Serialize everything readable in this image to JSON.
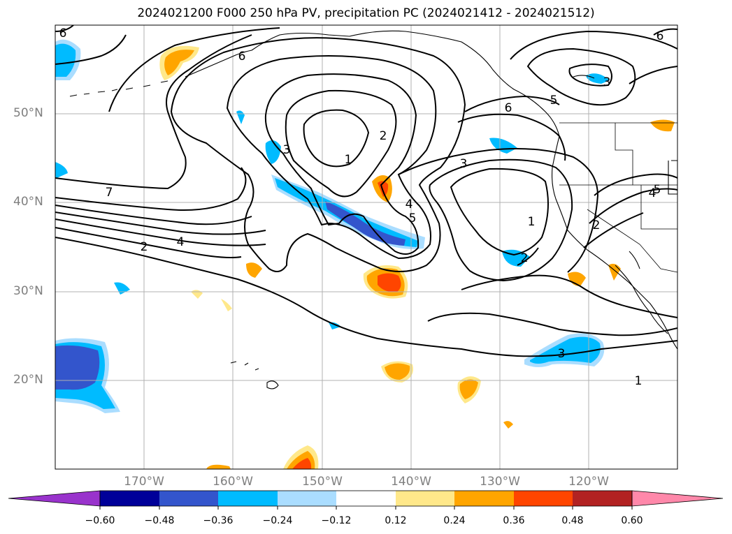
{
  "title": "2024021200 F000 250 hPa PV, precipitation PC (2024021412 - 2024021512)",
  "map": {
    "projection": "lat-lon",
    "lon_range": [
      "180°W",
      "110°W"
    ],
    "lat_range": [
      "10°N",
      "60°N"
    ],
    "gridlines": true,
    "lat_labels": [
      "50°N",
      "40°N",
      "30°N",
      "20°N"
    ],
    "lon_labels": [
      "170°W",
      "160°W",
      "150°W",
      "140°W",
      "130°W",
      "120°W"
    ],
    "contour_labels": [
      "6",
      "6",
      "6",
      "5",
      "3",
      "6",
      "5",
      "3",
      "2",
      "1",
      "7",
      "4",
      "2",
      "3",
      "4",
      "5",
      "1",
      "2",
      "2",
      "4",
      "3",
      "1"
    ]
  },
  "colorbar": {
    "ticks": [
      "−0.60",
      "−0.48",
      "−0.36",
      "−0.24",
      "−0.12",
      "0.12",
      "0.24",
      "0.36",
      "0.48",
      "0.60"
    ],
    "colors": [
      "#9933cc",
      "#000099",
      "#3355cc",
      "#00bbff",
      "#aaddff",
      "#ffffff",
      "#ffe88a",
      "#ffa500",
      "#ff4500",
      "#b22222",
      "#ff88aa"
    ]
  }
}
